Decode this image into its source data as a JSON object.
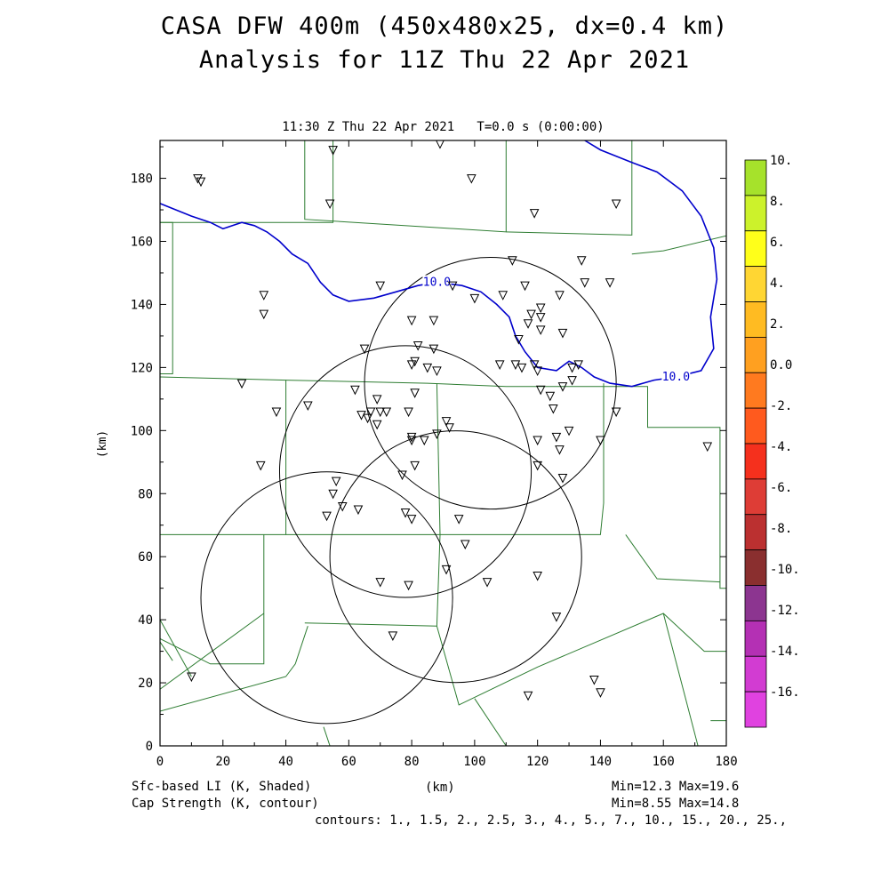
{
  "title_line1": "CASA DFW 400m (450x480x25, dx=0.4 km)",
  "title_line2": "Analysis for 11Z Thu 22 Apr 2021",
  "plot_subtitle": "11:30 Z Thu 22 Apr 2021   T=0.0 s (0:00:00)",
  "footer": {
    "left_line1": "Sfc-based LI (K, Shaded)",
    "left_line2": "Cap Strength (K, contour)",
    "right_line1": "Min=12.3 Max=19.6",
    "right_line2": "Min=8.55 Max=14.8",
    "contours": "contours: 1., 1.5, 2., 2.5, 3., 4., 5., 7., 10., 15., 20., 25.,"
  },
  "chart_data": {
    "type": "scatter",
    "xlabel": "(km)",
    "ylabel": "(km)",
    "xlim": [
      0,
      180
    ],
    "ylim": [
      0,
      192
    ],
    "x_ticks": [
      0,
      20,
      40,
      60,
      80,
      100,
      120,
      140,
      160,
      180
    ],
    "y_ticks": [
      0,
      20,
      40,
      60,
      80,
      100,
      120,
      140,
      160,
      180
    ],
    "contour_label": "10.0",
    "contour_color": "#0000cc",
    "county_line_color": "#2e7d32",
    "radar_ring_color": "#000000",
    "station_marker": "triangle-down",
    "colorbar": {
      "labels": [
        "10.",
        "8.",
        "6.",
        "4.",
        "2.",
        "0.0",
        "-2.",
        "-4.",
        "-6.",
        "-8.",
        "-10.",
        "-12.",
        "-14.",
        "-16."
      ],
      "colors": [
        "#a6e22b",
        "#ccf22b",
        "#ffff1a",
        "#ffd633",
        "#ffbb22",
        "#ffa020",
        "#ff7a1f",
        "#ff5a1e",
        "#f5301d",
        "#de3d36",
        "#bb3030",
        "#8a2f2f",
        "#8c3590",
        "#b430b4",
        "#d23cd2",
        "#e042e0"
      ]
    },
    "radar_rings": [
      {
        "cx": 78,
        "cy": 87,
        "r": 40
      },
      {
        "cx": 105,
        "cy": 115,
        "r": 40
      },
      {
        "cx": 94,
        "cy": 60,
        "r": 40
      },
      {
        "cx": 53,
        "cy": 47,
        "r": 40
      }
    ],
    "contour_10": [
      [
        0,
        172
      ],
      [
        10,
        168
      ],
      [
        16,
        166
      ],
      [
        20,
        164
      ],
      [
        23,
        165
      ],
      [
        26,
        166
      ],
      [
        30,
        165
      ],
      [
        34,
        163
      ],
      [
        38,
        160
      ],
      [
        42,
        156
      ],
      [
        47,
        153
      ],
      [
        51,
        147
      ],
      [
        55,
        143
      ],
      [
        60,
        141
      ],
      [
        68,
        142
      ],
      [
        75,
        144
      ],
      [
        82,
        146
      ],
      [
        88,
        147
      ],
      [
        96,
        146
      ],
      [
        102,
        144
      ],
      [
        107,
        140
      ],
      [
        111,
        136
      ],
      [
        113,
        130
      ],
      [
        116,
        125
      ],
      [
        120,
        120
      ],
      [
        126,
        119
      ],
      [
        130,
        122
      ],
      [
        134,
        120
      ],
      [
        138,
        117
      ],
      [
        143,
        115
      ],
      [
        150,
        114
      ],
      [
        157,
        116
      ],
      [
        164,
        117
      ],
      [
        172,
        119
      ],
      [
        176,
        126
      ],
      [
        175,
        136
      ],
      [
        177,
        148
      ],
      [
        176,
        158
      ],
      [
        172,
        168
      ],
      [
        166,
        176
      ],
      [
        158,
        182
      ],
      [
        150,
        185
      ],
      [
        140,
        189
      ],
      [
        135,
        192
      ]
    ],
    "stations": [
      [
        12,
        180
      ],
      [
        13,
        179
      ],
      [
        55,
        189
      ],
      [
        89,
        191
      ],
      [
        99,
        180
      ],
      [
        54,
        172
      ],
      [
        119,
        169
      ],
      [
        145,
        172
      ],
      [
        112,
        154
      ],
      [
        134,
        154
      ],
      [
        33,
        143
      ],
      [
        33,
        137
      ],
      [
        70,
        146
      ],
      [
        93,
        146
      ],
      [
        109,
        143
      ],
      [
        116,
        146
      ],
      [
        121,
        139
      ],
      [
        127,
        143
      ],
      [
        135,
        147
      ],
      [
        143,
        147
      ],
      [
        100,
        142
      ],
      [
        80,
        135
      ],
      [
        87,
        135
      ],
      [
        118,
        137
      ],
      [
        121,
        136
      ],
      [
        121,
        132
      ],
      [
        117,
        134
      ],
      [
        114,
        129
      ],
      [
        128,
        131
      ],
      [
        82,
        127
      ],
      [
        87,
        126
      ],
      [
        65,
        126
      ],
      [
        80,
        121
      ],
      [
        81,
        122
      ],
      [
        85,
        120
      ],
      [
        88,
        119
      ],
      [
        108,
        121
      ],
      [
        113,
        121
      ],
      [
        115,
        120
      ],
      [
        119,
        121
      ],
      [
        120,
        119
      ],
      [
        131,
        120
      ],
      [
        133,
        121
      ],
      [
        26,
        115
      ],
      [
        37,
        106
      ],
      [
        47,
        108
      ],
      [
        62,
        113
      ],
      [
        69,
        110
      ],
      [
        64,
        105
      ],
      [
        66,
        104
      ],
      [
        67,
        106
      ],
      [
        69,
        102
      ],
      [
        70,
        106
      ],
      [
        72,
        106
      ],
      [
        79,
        106
      ],
      [
        81,
        112
      ],
      [
        91,
        103
      ],
      [
        92,
        101
      ],
      [
        88,
        99
      ],
      [
        80,
        98
      ],
      [
        80,
        97
      ],
      [
        84,
        97
      ],
      [
        120,
        97
      ],
      [
        126,
        98
      ],
      [
        130,
        100
      ],
      [
        140,
        97
      ],
      [
        145,
        106
      ],
      [
        124,
        111
      ],
      [
        125,
        107
      ],
      [
        121,
        113
      ],
      [
        128,
        114
      ],
      [
        131,
        116
      ],
      [
        127,
        94
      ],
      [
        128,
        85
      ],
      [
        120,
        89
      ],
      [
        81,
        89
      ],
      [
        77,
        86
      ],
      [
        56,
        84
      ],
      [
        55,
        80
      ],
      [
        58,
        76
      ],
      [
        53,
        73
      ],
      [
        63,
        75
      ],
      [
        78,
        74
      ],
      [
        80,
        72
      ],
      [
        95,
        72
      ],
      [
        32,
        89
      ],
      [
        97,
        64
      ],
      [
        91,
        56
      ],
      [
        70,
        52
      ],
      [
        79,
        51
      ],
      [
        104,
        52
      ],
      [
        120,
        54
      ],
      [
        126,
        41
      ],
      [
        74,
        35
      ],
      [
        10,
        22
      ],
      [
        117,
        16
      ],
      [
        138,
        21
      ],
      [
        140,
        17
      ],
      [
        174,
        95
      ]
    ],
    "county_lines": [
      [
        [
          0,
          166
        ],
        [
          55,
          166
        ],
        [
          55,
          192
        ]
      ],
      [
        [
          46,
          192
        ],
        [
          46,
          167
        ],
        [
          110,
          163
        ],
        [
          110,
          192
        ]
      ],
      [
        [
          0,
          166
        ],
        [
          4,
          166
        ],
        [
          4,
          118
        ],
        [
          0,
          118
        ]
      ],
      [
        [
          0,
          117
        ],
        [
          40,
          116
        ],
        [
          40,
          67
        ],
        [
          0,
          67
        ]
      ],
      [
        [
          40,
          116
        ],
        [
          85,
          115
        ],
        [
          110,
          114
        ],
        [
          155,
          114
        ],
        [
          155,
          101
        ],
        [
          178,
          101
        ],
        [
          178,
          50
        ],
        [
          181,
          50
        ]
      ],
      [
        [
          110,
          163
        ],
        [
          150,
          162
        ],
        [
          150,
          192
        ]
      ],
      [
        [
          150,
          156
        ],
        [
          160,
          157
        ],
        [
          181,
          162
        ]
      ],
      [
        [
          40,
          67
        ],
        [
          90,
          67
        ],
        [
          140,
          67
        ],
        [
          141,
          77
        ],
        [
          141,
          115
        ]
      ],
      [
        [
          88,
          115
        ],
        [
          89,
          67
        ],
        [
          88,
          38
        ]
      ],
      [
        [
          33,
          67
        ],
        [
          33,
          26
        ],
        [
          16,
          26
        ],
        [
          0,
          34
        ]
      ],
      [
        [
          33,
          42
        ],
        [
          0,
          18
        ]
      ],
      [
        [
          46,
          39
        ],
        [
          88,
          38
        ],
        [
          95,
          13
        ],
        [
          120,
          25
        ],
        [
          160,
          42
        ],
        [
          173,
          30
        ],
        [
          181,
          30
        ]
      ],
      [
        [
          47,
          38
        ],
        [
          43,
          26
        ],
        [
          40,
          22
        ],
        [
          0,
          11
        ]
      ],
      [
        [
          148,
          67
        ],
        [
          158,
          53
        ],
        [
          178,
          52
        ]
      ],
      [
        [
          100,
          15
        ],
        [
          110,
          0
        ]
      ],
      [
        [
          52,
          6
        ],
        [
          54,
          0
        ]
      ],
      [
        [
          160,
          42
        ],
        [
          171,
          0
        ]
      ],
      [
        [
          175,
          8
        ],
        [
          181,
          8
        ]
      ],
      [
        [
          0,
          40
        ],
        [
          10,
          22
        ]
      ],
      [
        [
          0,
          33
        ],
        [
          4,
          27
        ]
      ]
    ]
  }
}
